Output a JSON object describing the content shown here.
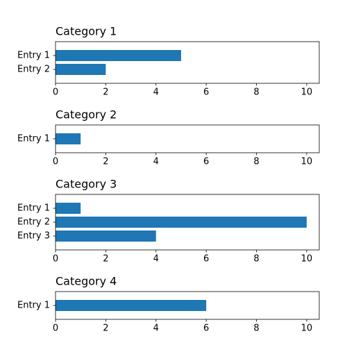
{
  "chart_data": [
    {
      "type": "bar",
      "orientation": "horizontal",
      "title": "Category 1",
      "categories": [
        "Entry 1",
        "Entry 2"
      ],
      "values": [
        5,
        2
      ],
      "color": "#1f77b4",
      "xlim": [
        0,
        10.5
      ],
      "xticks": [
        0,
        2,
        4,
        6,
        8,
        10
      ]
    },
    {
      "type": "bar",
      "orientation": "horizontal",
      "title": "Category 2",
      "categories": [
        "Entry 1"
      ],
      "values": [
        1
      ],
      "color": "#1f77b4",
      "xlim": [
        0,
        10.5
      ],
      "xticks": [
        0,
        2,
        4,
        6,
        8,
        10
      ]
    },
    {
      "type": "bar",
      "orientation": "horizontal",
      "title": "Category 3",
      "categories": [
        "Entry 1",
        "Entry 2",
        "Entry 3"
      ],
      "values": [
        1,
        10,
        4
      ],
      "color": "#1f77b4",
      "xlim": [
        0,
        10.5
      ],
      "xticks": [
        0,
        2,
        4,
        6,
        8,
        10
      ]
    },
    {
      "type": "bar",
      "orientation": "horizontal",
      "title": "Category 4",
      "categories": [
        "Entry 1"
      ],
      "values": [
        6
      ],
      "color": "#1f77b4",
      "xlim": [
        0,
        10.5
      ],
      "xticks": [
        0,
        2,
        4,
        6,
        8,
        10
      ]
    }
  ]
}
